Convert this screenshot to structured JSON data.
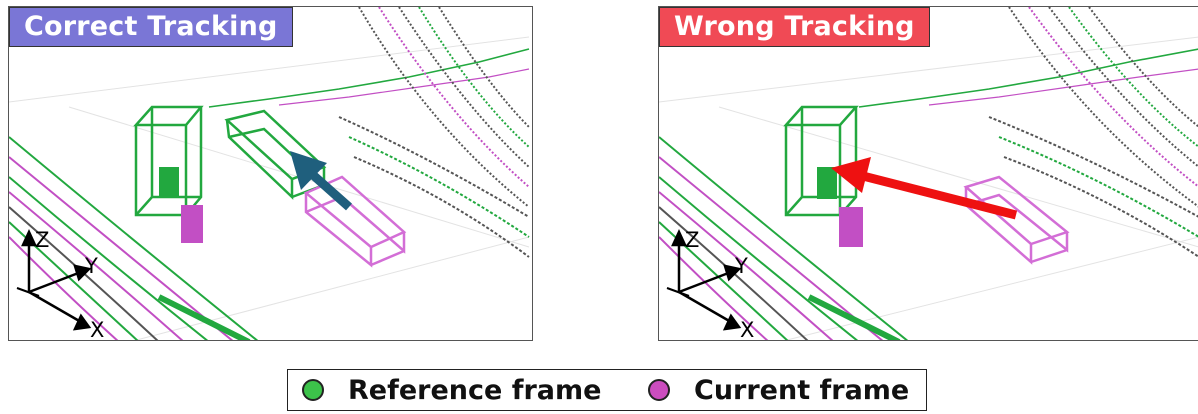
{
  "panels": {
    "left": {
      "title": "Correct Tracking"
    },
    "right": {
      "title": "Wrong Tracking"
    }
  },
  "axes": {
    "z": "Z",
    "y": "Y",
    "x": "X"
  },
  "legend": {
    "reference": {
      "label": "Reference frame",
      "color": "#3cc24a"
    },
    "current": {
      "label": "Current frame",
      "color": "#cc4dbf"
    }
  },
  "colors": {
    "reference": "#22a83f",
    "current": "#c24fc4",
    "correct_arrow": "#1f5f7d",
    "wrong_arrow": "#ee1111",
    "correct_badge": "#7a76d6",
    "wrong_badge": "#f04a55"
  }
}
